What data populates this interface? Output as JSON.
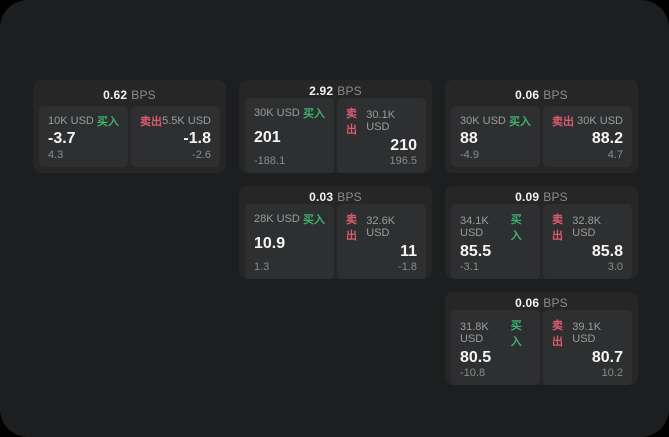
{
  "theme": {
    "panel_bg": "#1d1e1f",
    "card_bg": "#262627",
    "tile_bg": "#2e2f30",
    "buy_color": "#3fb06e",
    "sell_color": "#d95c6e",
    "muted_text": "#8b8b8b",
    "dim_text": "#9c9c9c"
  },
  "labels": {
    "bps_unit": "BPS",
    "buy": "买入",
    "sell": "卖出"
  },
  "cards": [
    {
      "row": 1,
      "col": 1,
      "bps": "0.62",
      "buy": {
        "size": "10K USD",
        "value": "-3.7",
        "delta": "4.3"
      },
      "sell": {
        "size": "5.5K USD",
        "value": "-1.8",
        "delta": "-2.6"
      }
    },
    {
      "row": 1,
      "col": 2,
      "bps": "2.92",
      "buy": {
        "size": "30K USD",
        "value": "201",
        "delta": "-188.1"
      },
      "sell": {
        "size": "30.1K USD",
        "value": "210",
        "delta": "196.5"
      }
    },
    {
      "row": 1,
      "col": 3,
      "bps": "0.06",
      "buy": {
        "size": "30K USD",
        "value": "88",
        "delta": "-4.9"
      },
      "sell": {
        "size": "30K USD",
        "value": "88.2",
        "delta": "4.7"
      }
    },
    {
      "row": 2,
      "col": 2,
      "bps": "0.03",
      "buy": {
        "size": "28K USD",
        "value": "10.9",
        "delta": "1.3"
      },
      "sell": {
        "size": "32.6K USD",
        "value": "11",
        "delta": "-1.8"
      }
    },
    {
      "row": 2,
      "col": 3,
      "bps": "0.09",
      "buy": {
        "size": "34.1K USD",
        "value": "85.5",
        "delta": "-3.1"
      },
      "sell": {
        "size": "32.8K USD",
        "value": "85.8",
        "delta": "3.0"
      }
    },
    {
      "row": 3,
      "col": 3,
      "bps": "0.06",
      "buy": {
        "size": "31.8K USD",
        "value": "80.5",
        "delta": "-10.8"
      },
      "sell": {
        "size": "39.1K USD",
        "value": "80.7",
        "delta": "10.2"
      }
    }
  ]
}
